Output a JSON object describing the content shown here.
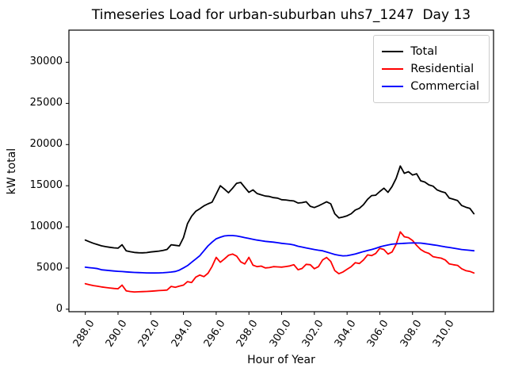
{
  "chart_data": {
    "type": "line",
    "title": "Timeseries Load for urban-suburban uhs7_1247  Day 13",
    "xlabel": "Hour of Year",
    "ylabel": "kW total",
    "grid": false,
    "legend_position": "upper right",
    "xlim": [
      287.0,
      312.95
    ],
    "ylim": [
      -300,
      33900
    ],
    "x_ticks": [
      288,
      290,
      292,
      294,
      296,
      298,
      300,
      302,
      304,
      306,
      308,
      310
    ],
    "x_tick_labels": [
      "288.0",
      "290.0",
      "292.0",
      "294.0",
      "296.0",
      "298.0",
      "300.0",
      "302.0",
      "304.0",
      "306.0",
      "308.0",
      "310.0"
    ],
    "x_tick_rotation_deg": 60,
    "y_ticks": [
      0,
      5000,
      10000,
      15000,
      20000,
      25000,
      30000
    ],
    "y_tick_labels": [
      "0",
      "5000",
      "10000",
      "15000",
      "20000",
      "25000",
      "30000"
    ],
    "x": [
      288.0,
      288.25,
      288.5,
      288.75,
      289.0,
      289.25,
      289.5,
      289.75,
      290.0,
      290.25,
      290.5,
      290.75,
      291.0,
      291.25,
      291.5,
      291.75,
      292.0,
      292.25,
      292.5,
      292.75,
      293.0,
      293.25,
      293.5,
      293.75,
      294.0,
      294.25,
      294.5,
      294.75,
      295.0,
      295.25,
      295.5,
      295.75,
      296.0,
      296.25,
      296.5,
      296.75,
      297.0,
      297.25,
      297.5,
      297.75,
      298.0,
      298.25,
      298.5,
      298.75,
      299.0,
      299.25,
      299.5,
      299.75,
      300.0,
      300.25,
      300.5,
      300.75,
      301.0,
      301.25,
      301.5,
      301.75,
      302.0,
      302.25,
      302.5,
      302.75,
      303.0,
      303.25,
      303.5,
      303.75,
      304.0,
      304.25,
      304.5,
      304.75,
      305.0,
      305.25,
      305.5,
      305.75,
      306.0,
      306.25,
      306.5,
      306.75,
      307.0,
      307.25,
      307.5,
      307.75,
      308.0,
      308.25,
      308.5,
      308.75,
      309.0,
      309.25,
      309.5,
      309.75,
      310.0,
      310.25,
      310.5,
      310.75,
      311.0,
      311.25,
      311.5,
      311.75
    ],
    "series": [
      {
        "name": "Total",
        "color": "#000000",
        "values": [
          8400,
          8200,
          8000,
          7850,
          7700,
          7600,
          7520,
          7460,
          7420,
          7830,
          7100,
          6980,
          6900,
          6860,
          6850,
          6880,
          6950,
          7000,
          7060,
          7150,
          7260,
          7830,
          7760,
          7700,
          8700,
          10400,
          11300,
          11900,
          12200,
          12550,
          12800,
          13000,
          14000,
          15000,
          14600,
          14150,
          14700,
          15300,
          15400,
          14800,
          14200,
          14500,
          14050,
          13900,
          13750,
          13700,
          13550,
          13500,
          13300,
          13270,
          13200,
          13150,
          12900,
          12950,
          13050,
          12500,
          12350,
          12550,
          12800,
          13050,
          12800,
          11600,
          11100,
          11200,
          11350,
          11600,
          12050,
          12250,
          12700,
          13350,
          13800,
          13850,
          14300,
          14700,
          14200,
          14900,
          15900,
          17400,
          16500,
          16700,
          16300,
          16450,
          15600,
          15450,
          15100,
          14950,
          14500,
          14300,
          14150,
          13500,
          13350,
          13200,
          12600,
          12400,
          12250,
          11600
        ]
      },
      {
        "name": "Residential",
        "color": "#ff0000",
        "values": [
          3100,
          2980,
          2870,
          2790,
          2710,
          2640,
          2580,
          2520,
          2480,
          2930,
          2230,
          2150,
          2100,
          2120,
          2140,
          2160,
          2190,
          2220,
          2260,
          2290,
          2330,
          2770,
          2670,
          2800,
          2930,
          3350,
          3250,
          3900,
          4150,
          3960,
          4370,
          5200,
          6300,
          5700,
          6100,
          6550,
          6700,
          6450,
          5750,
          5500,
          6300,
          5350,
          5170,
          5240,
          5020,
          5060,
          5170,
          5140,
          5110,
          5180,
          5260,
          5400,
          4800,
          4950,
          5450,
          5400,
          4920,
          5170,
          5980,
          6290,
          5810,
          4690,
          4310,
          4530,
          4850,
          5170,
          5650,
          5550,
          5980,
          6600,
          6510,
          6770,
          7400,
          7250,
          6700,
          6950,
          7900,
          9400,
          8800,
          8700,
          8350,
          7750,
          7250,
          6950,
          6780,
          6390,
          6290,
          6200,
          5980,
          5500,
          5400,
          5330,
          4920,
          4690,
          4590,
          4400
        ]
      },
      {
        "name": "Commercial",
        "color": "#0000ff",
        "values": [
          5100,
          5050,
          5000,
          4930,
          4790,
          4740,
          4690,
          4640,
          4600,
          4570,
          4540,
          4500,
          4470,
          4450,
          4430,
          4410,
          4400,
          4400,
          4410,
          4430,
          4470,
          4520,
          4580,
          4750,
          5020,
          5300,
          5700,
          6100,
          6500,
          7100,
          7700,
          8150,
          8550,
          8750,
          8900,
          8950,
          8950,
          8900,
          8800,
          8700,
          8600,
          8500,
          8400,
          8320,
          8250,
          8200,
          8150,
          8080,
          8000,
          7950,
          7900,
          7800,
          7650,
          7550,
          7450,
          7350,
          7250,
          7170,
          7100,
          6950,
          6800,
          6650,
          6550,
          6480,
          6500,
          6600,
          6700,
          6850,
          7000,
          7130,
          7250,
          7400,
          7570,
          7700,
          7800,
          7900,
          7950,
          7980,
          8000,
          8030,
          8050,
          8040,
          8030,
          7970,
          7900,
          7820,
          7750,
          7660,
          7570,
          7500,
          7420,
          7330,
          7250,
          7200,
          7160,
          7100
        ]
      }
    ]
  }
}
